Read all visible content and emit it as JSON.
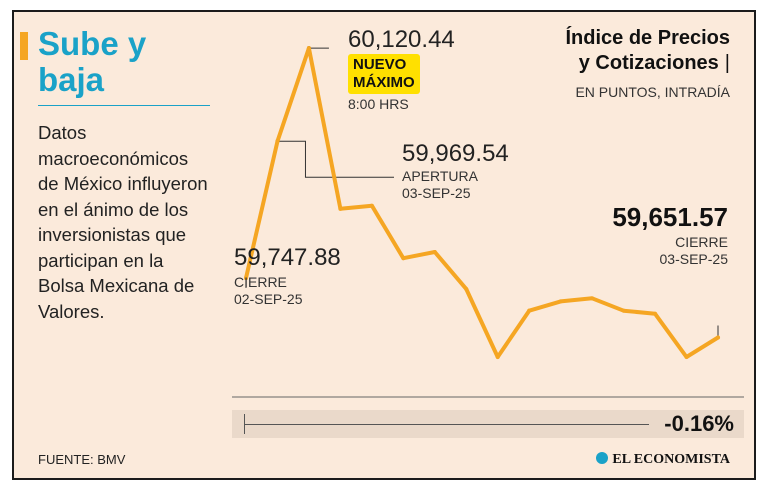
{
  "headline": {
    "line1": "Sube y",
    "line2": "baja"
  },
  "body_text": "Datos macroeconómicos de México influyeron en el ánimo de los inversionistas que participan en la Bolsa Mexicana de Valores.",
  "source": "FUENTE: BMV",
  "index_title": {
    "line1": "Índice de Precios",
    "line2": "y Cotizaciones",
    "bar": "|"
  },
  "index_subtitle": "EN PUNTOS, INTRADÍA",
  "annotations": {
    "max": {
      "value": "60,120.44",
      "badge_line1": "NUEVO",
      "badge_line2": "MÁXIMO",
      "time": "8:00 HRS"
    },
    "open": {
      "value": "59,969.54",
      "label": "APERTURA",
      "date": "03-SEP-25"
    },
    "prev_close": {
      "value": "59,747.88",
      "label": "CIERRE",
      "date": "02-SEP-25"
    },
    "close": {
      "value": "59,651.57",
      "label": "CIERRE",
      "date": "03-SEP-25"
    }
  },
  "change": "-0.16%",
  "brand": "EL ECONOMISTA",
  "colors": {
    "line": "#f5a623",
    "headline": "#1aa2c8",
    "badge": "#ffe000",
    "background": "#fbeadb"
  },
  "chart_data": {
    "type": "line",
    "title": "Índice de Precios y Cotizaciones",
    "subtitle": "EN PUNTOS, INTRADÍA",
    "x": [
      0,
      1,
      2,
      3,
      4,
      5,
      6,
      7,
      8,
      9,
      10,
      11,
      12,
      13,
      14,
      15
    ],
    "values": [
      59747.88,
      59969.54,
      60120.44,
      59860,
      59865,
      59780,
      59790,
      59730,
      59620,
      59695,
      59710,
      59715,
      59695,
      59690,
      59620,
      59651.57
    ],
    "ylim": [
      59560,
      60140
    ],
    "grid": false,
    "legend": "none"
  }
}
